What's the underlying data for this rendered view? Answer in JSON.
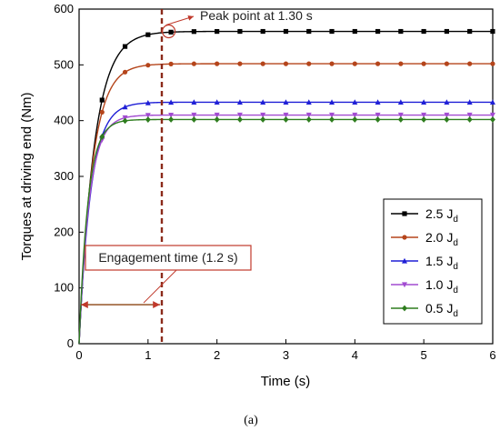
{
  "chart_data": {
    "type": "line",
    "xlabel": "Time (s)",
    "ylabel": "Torques at driving end (Nm)",
    "xlim": [
      0,
      6
    ],
    "ylim": [
      0,
      600
    ],
    "xticks": [
      0,
      1,
      2,
      3,
      4,
      5,
      6
    ],
    "yticks": [
      0,
      100,
      200,
      300,
      400,
      500,
      600
    ],
    "grid": false,
    "legend_position": "lower-right",
    "series": [
      {
        "name": "2.5 J",
        "subscript": "d",
        "color": "#000000",
        "marker": "square",
        "tau": 0.22,
        "final": 560
      },
      {
        "name": "2.0 J",
        "subscript": "d",
        "color": "#b5451b",
        "marker": "circle",
        "tau": 0.19,
        "final": 502
      },
      {
        "name": "1.5 J",
        "subscript": "d",
        "color": "#1f1fd6",
        "marker": "triangle-up",
        "tau": 0.17,
        "final": 433
      },
      {
        "name": "1.0 J",
        "subscript": "d",
        "color": "#a24bd1",
        "marker": "triangle-down",
        "tau": 0.15,
        "final": 410
      },
      {
        "name": "0.5 J",
        "subscript": "d",
        "color": "#2e7d1e",
        "marker": "diamond",
        "tau": 0.13,
        "final": 402
      }
    ],
    "annotations": {
      "peak_label": "Peak point at 1.30 s",
      "peak_x": 1.3,
      "peak_y": 560,
      "engagement_label": "Engagement time (1.2 s)",
      "engagement_time": 1.2,
      "engagement_arrow_y": 70
    }
  },
  "caption": "(a)",
  "colors": {
    "annotation_red": "#c0392b",
    "engagement_line": "#8b2a1a"
  }
}
